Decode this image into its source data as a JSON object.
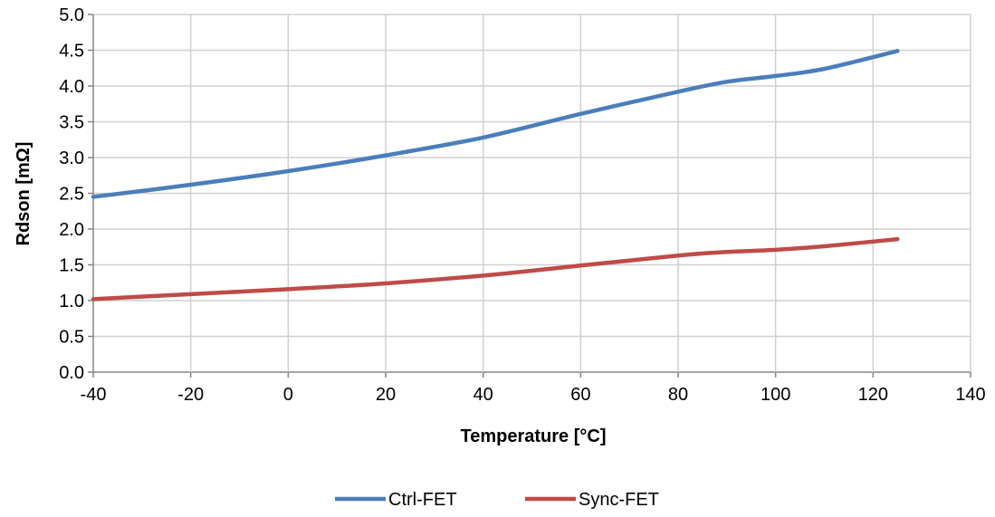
{
  "chart_data": {
    "type": "line",
    "xlabel": "Temperature [°C]",
    "ylabel": "Rdson [mΩ]",
    "xlim": [
      -40,
      140
    ],
    "ylim": [
      0,
      5
    ],
    "x_ticks": [
      "-40",
      "-20",
      "0",
      "20",
      "40",
      "60",
      "80",
      "100",
      "120",
      "140"
    ],
    "y_ticks": [
      "0.0",
      "0.5",
      "1.0",
      "1.5",
      "2.0",
      "2.5",
      "3.0",
      "3.5",
      "4.0",
      "4.5",
      "5.0"
    ],
    "grid": true,
    "legend_position": "bottom",
    "series": [
      {
        "name": "Ctrl-FET",
        "color": "#4a7ebb",
        "x": [
          -40,
          -20,
          0,
          20,
          40,
          60,
          80,
          90,
          100,
          110,
          125
        ],
        "y": [
          2.45,
          2.62,
          2.81,
          3.03,
          3.28,
          3.61,
          3.92,
          4.06,
          4.14,
          4.24,
          4.49
        ]
      },
      {
        "name": "Sync-FET",
        "color": "#be4b48",
        "x": [
          -40,
          -20,
          0,
          20,
          40,
          60,
          80,
          90,
          100,
          110,
          125
        ],
        "y": [
          1.02,
          1.09,
          1.16,
          1.24,
          1.35,
          1.49,
          1.63,
          1.68,
          1.71,
          1.76,
          1.86
        ]
      }
    ]
  }
}
